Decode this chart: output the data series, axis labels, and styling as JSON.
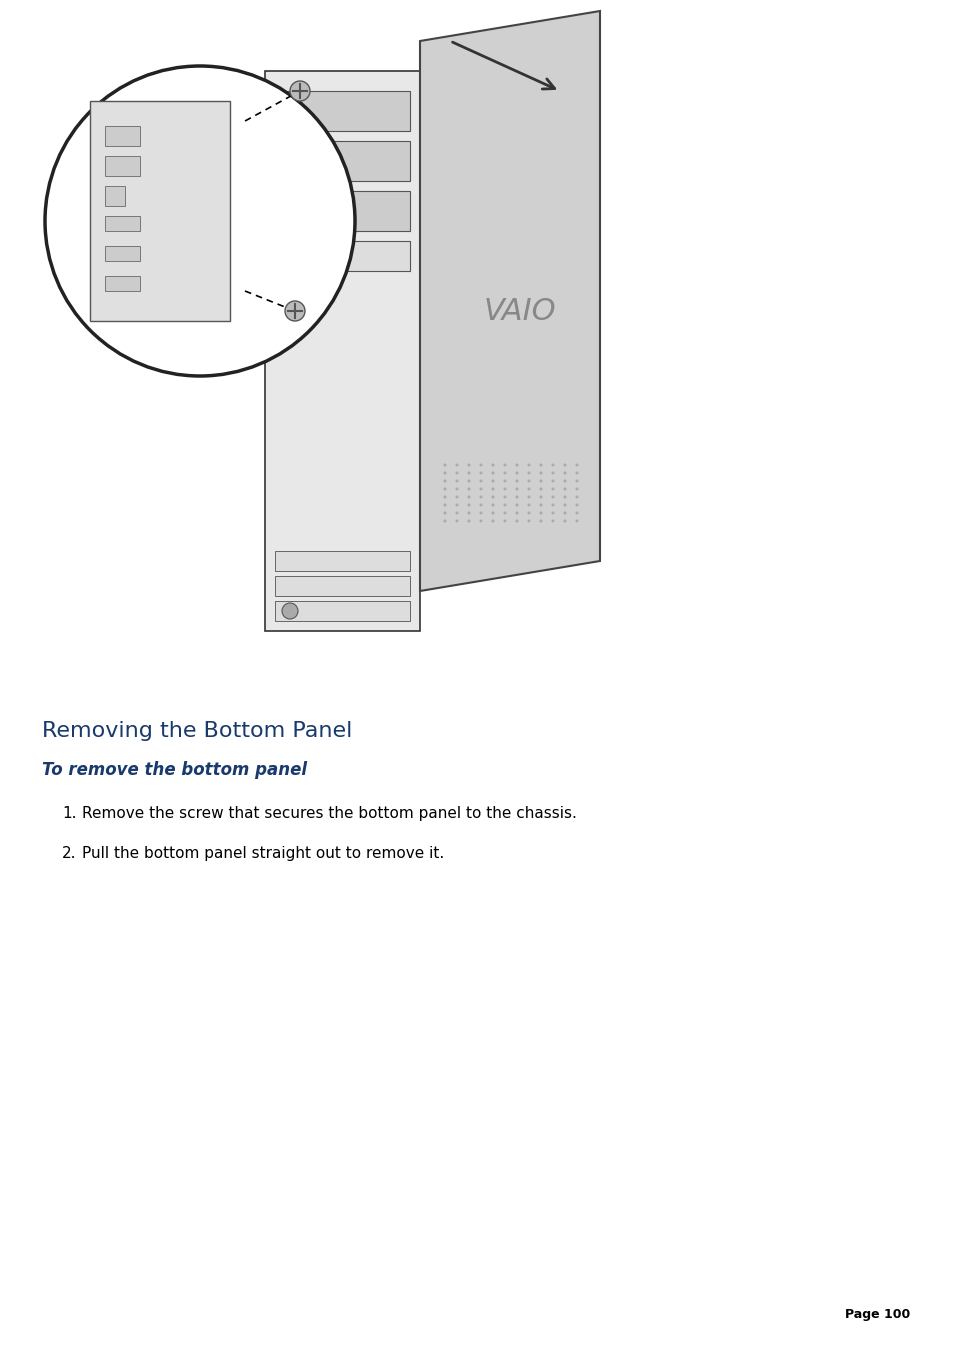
{
  "title": "Removing the Bottom Panel",
  "subtitle": "To remove the bottom panel",
  "step1": "Remove the screw that secures the bottom panel to the chassis.",
  "step2": "Pull the bottom panel straight out to remove it.",
  "page_number": "Page 100",
  "title_color": "#1a3a6b",
  "subtitle_color": "#1a3a6b",
  "body_color": "#000000",
  "page_color": "#000000",
  "background_color": "#ffffff",
  "title_fontsize": 16,
  "subtitle_fontsize": 12,
  "body_fontsize": 11,
  "page_fontsize": 9
}
